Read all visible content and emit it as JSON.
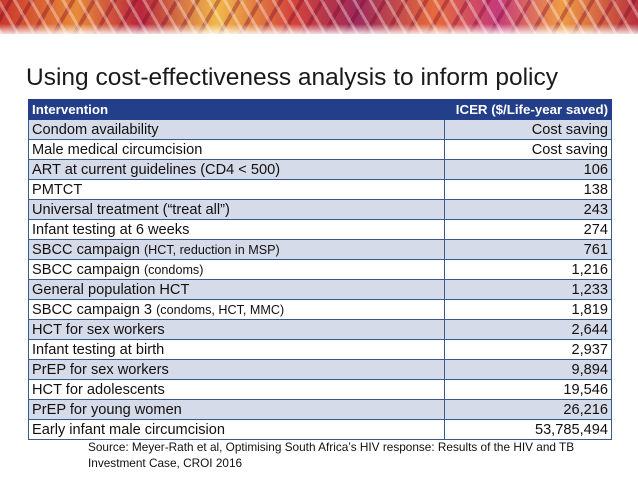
{
  "title": "Using cost-effectiveness analysis to inform policy",
  "table": {
    "headers": {
      "intervention": "Intervention",
      "icer": "ICER ($/Life-year saved)"
    },
    "rows": [
      {
        "name": "Condom availability",
        "note": "",
        "icer": "Cost saving"
      },
      {
        "name": "Male medical circumcision",
        "note": "",
        "icer": "Cost saving"
      },
      {
        "name": "ART at current guidelines (CD4 < 500)",
        "note": "",
        "icer": "106"
      },
      {
        "name": "PMTCT",
        "note": "",
        "icer": "138"
      },
      {
        "name": "Universal treatment (“treat all”)",
        "note": "",
        "icer": "243"
      },
      {
        "name": "Infant testing at 6 weeks",
        "note": "",
        "icer": "274"
      },
      {
        "name": "SBCC campaign ",
        "note": "(HCT, reduction in MSP)",
        "icer": "761"
      },
      {
        "name": "SBCC campaign ",
        "note": "(condoms)",
        "icer": "1,216"
      },
      {
        "name": "General population HCT",
        "note": "",
        "icer": "1,233"
      },
      {
        "name": "SBCC campaign 3 ",
        "note": "(condoms, HCT, MMC)",
        "icer": "1,819"
      },
      {
        "name": "HCT for sex workers",
        "note": "",
        "icer": "2,644"
      },
      {
        "name": "Infant testing at birth",
        "note": "",
        "icer": "2,937"
      },
      {
        "name": "PrEP for sex workers",
        "note": "",
        "icer": "9,894"
      },
      {
        "name": "HCT for adolescents",
        "note": "",
        "icer": "19,546"
      },
      {
        "name": "PrEP for young women",
        "note": "",
        "icer": "26,216"
      },
      {
        "name": "Early infant male circumcision",
        "note": "",
        "icer": "53,785,494"
      }
    ]
  },
  "source": "Source: Meyer-Rath et al, Optimising South Africa’s HIV response: Results of the HIV and TB Investment Case, CROI 2016"
}
